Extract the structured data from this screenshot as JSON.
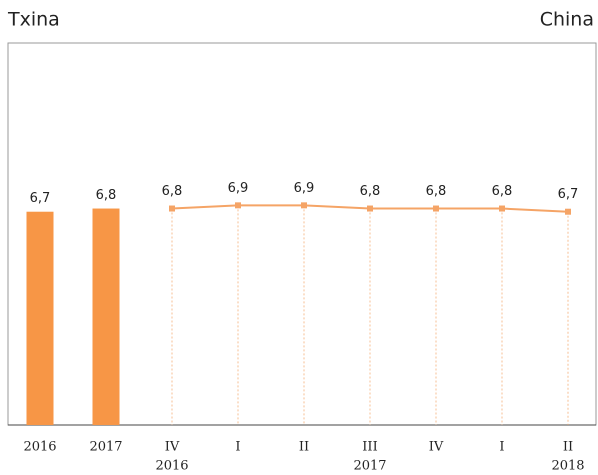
{
  "chart_data": {
    "type": "combo",
    "title": "Txina",
    "subtitle": "China",
    "categories": [
      "2016",
      "2017",
      "IV",
      "I",
      "II",
      "III",
      "IV",
      "I",
      "II"
    ],
    "category_years": [
      null,
      null,
      "2016",
      null,
      null,
      "2017",
      null,
      null,
      "2018"
    ],
    "ylim": [
      0,
      12
    ],
    "series": [
      {
        "kind": "bar",
        "color": "#f79646",
        "values": [
          6.7,
          6.8,
          null,
          null,
          null,
          null,
          null,
          null,
          null
        ],
        "value_labels": [
          "6,7",
          "6,8",
          null,
          null,
          null,
          null,
          null,
          null,
          null
        ]
      },
      {
        "kind": "line",
        "color": "#f5a466",
        "values": [
          null,
          null,
          6.8,
          6.9,
          6.9,
          6.8,
          6.8,
          6.8,
          6.7
        ],
        "value_labels": [
          null,
          null,
          "6,8",
          "6,9",
          "6,9",
          "6,8",
          "6,8",
          "6,8",
          "6,7"
        ]
      }
    ]
  }
}
